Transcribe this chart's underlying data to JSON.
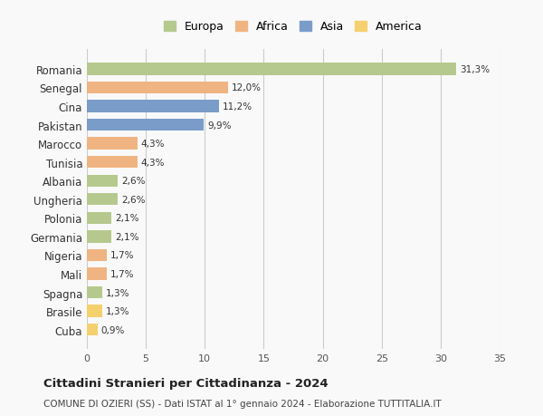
{
  "countries": [
    "Romania",
    "Senegal",
    "Cina",
    "Pakistan",
    "Marocco",
    "Tunisia",
    "Albania",
    "Ungheria",
    "Polonia",
    "Germania",
    "Nigeria",
    "Mali",
    "Spagna",
    "Brasile",
    "Cuba"
  ],
  "values": [
    31.3,
    12.0,
    11.2,
    9.9,
    4.3,
    4.3,
    2.6,
    2.6,
    2.1,
    2.1,
    1.7,
    1.7,
    1.3,
    1.3,
    0.9
  ],
  "labels": [
    "31,3%",
    "12,0%",
    "11,2%",
    "9,9%",
    "4,3%",
    "4,3%",
    "2,6%",
    "2,6%",
    "2,1%",
    "2,1%",
    "1,7%",
    "1,7%",
    "1,3%",
    "1,3%",
    "0,9%"
  ],
  "colors": [
    "#b5c98e",
    "#f0b482",
    "#7a9cc9",
    "#7a9cc9",
    "#f0b482",
    "#f0b482",
    "#b5c98e",
    "#b5c98e",
    "#b5c98e",
    "#b5c98e",
    "#f0b482",
    "#f0b482",
    "#b5c98e",
    "#f5d06e",
    "#f5d06e"
  ],
  "legend_labels": [
    "Europa",
    "Africa",
    "Asia",
    "America"
  ],
  "legend_colors": [
    "#b5c98e",
    "#f0b482",
    "#7a9cc9",
    "#f5d06e"
  ],
  "title": "Cittadini Stranieri per Cittadinanza - 2024",
  "subtitle": "COMUNE DI OZIERI (SS) - Dati ISTAT al 1° gennaio 2024 - Elaborazione TUTTITALIA.IT",
  "xlim": [
    0,
    35
  ],
  "xticks": [
    0,
    5,
    10,
    15,
    20,
    25,
    30,
    35
  ],
  "bg_color": "#f9f9f9",
  "grid_color": "#cccccc",
  "bar_height": 0.65
}
